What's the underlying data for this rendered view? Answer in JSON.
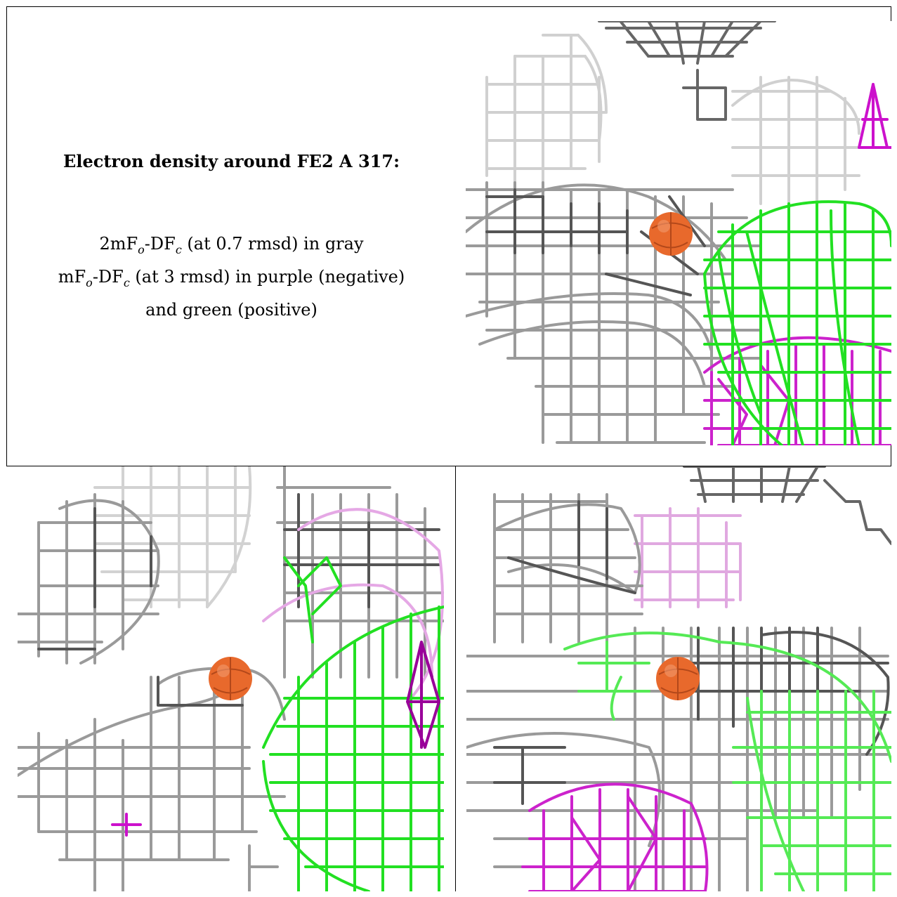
{
  "caption": {
    "title": "Electron density around FE2 A 317:",
    "line1_prefix": "2mF",
    "line1_sub_o": "o",
    "line1_mid": "-DF",
    "line1_sub_c": "c",
    "line1_suffix": " (at 0.7 rmsd) in gray",
    "line2_prefix": "mF",
    "line2_sub_o": "o",
    "line2_mid": "-DF",
    "line2_sub_c": "c",
    "line2_suffix": " (at 3 rmsd) in purple (negative)",
    "line3": "and green (positive)"
  },
  "colors": {
    "gray_mesh": "#9a9a9a",
    "dark_mesh": "#555555",
    "light_mesh": "#d2d2d2",
    "green_mesh": "#1fe01f",
    "purple_mesh": "#cc22cc",
    "dark_purple": "#990099",
    "atom": "#e8692c",
    "atom_dark": "#b3481a"
  },
  "panels": [
    {
      "name": "view-top-right",
      "atom": "FE2 A 317"
    },
    {
      "name": "view-bottom-left",
      "atom": "FE2 A 317"
    },
    {
      "name": "view-bottom-right",
      "atom": "FE2 A 317"
    }
  ]
}
